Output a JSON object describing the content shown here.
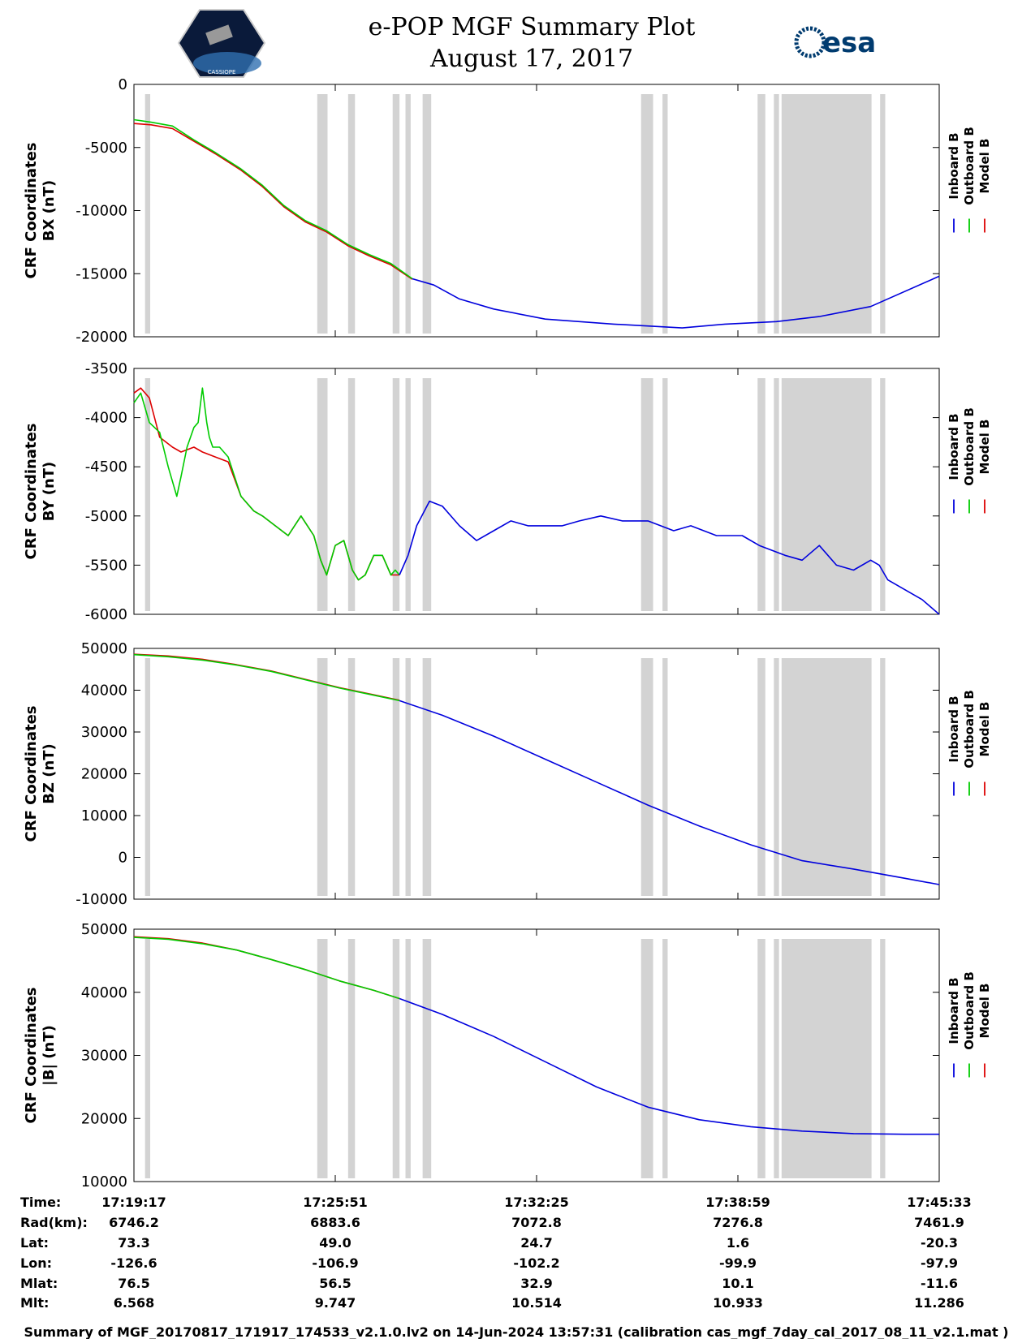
{
  "title": {
    "line1": "e-POP MGF Summary Plot",
    "line2": "August 17, 2017"
  },
  "logos": {
    "cassiope_text": "CASSIOPE",
    "esa_text": "esa"
  },
  "colors": {
    "inboard": "#0000dd",
    "outboard": "#00cc00",
    "model": "#dd0000",
    "gap": "#d3d3d3",
    "axis": "#000000"
  },
  "legend": [
    "Inboard B",
    "Outboard B",
    "Model B"
  ],
  "chart_data": [
    {
      "type": "line",
      "ylabel_line1": "CRF Coordinates",
      "ylabel_line2": "BX (nT)",
      "ylim": [
        -20000,
        0
      ],
      "yticks": [
        0,
        -5000,
        -10000,
        -15000,
        -20000
      ],
      "ytick_labels": [
        "0",
        "-5000",
        "-10000",
        "-15000",
        "-20000"
      ],
      "outboard": {
        "t": [
          0,
          20,
          45,
          70,
          95,
          125,
          150,
          175,
          200,
          225,
          250,
          275,
          300,
          325
        ],
        "v": [
          -2800,
          -3000,
          -3300,
          -4400,
          -5400,
          -6700,
          -8000,
          -9600,
          -10800,
          -11600,
          -12700,
          -13500,
          -14200,
          -15400
        ]
      },
      "model": {
        "t": [
          0,
          20,
          45,
          70,
          95,
          125,
          150,
          175,
          200,
          225,
          250,
          275,
          300,
          325
        ],
        "v": [
          -3100,
          -3200,
          -3500,
          -4500,
          -5500,
          -6800,
          -8100,
          -9700,
          -10900,
          -11700,
          -12800,
          -13600,
          -14300,
          -15450
        ]
      },
      "inboard": {
        "t": [
          325,
          350,
          380,
          420,
          480,
          560,
          640,
          690,
          750,
          800,
          860,
          940
        ],
        "v": [
          -15400,
          -15900,
          -17000,
          -17800,
          -18600,
          -19000,
          -19300,
          -19000,
          -18800,
          -18400,
          -17600,
          -15200
        ]
      }
    },
    {
      "type": "line",
      "ylabel_line1": "CRF Coordinates",
      "ylabel_line2": "BY (nT)",
      "ylim": [
        -6000,
        -3500
      ],
      "yticks": [
        -3500,
        -4000,
        -4500,
        -5000,
        -5500,
        -6000
      ],
      "ytick_labels": [
        "-3500",
        "-4000",
        "-4500",
        "-5000",
        "-5500",
        "-6000"
      ],
      "outboard": {
        "t": [
          0,
          8,
          18,
          30,
          40,
          50,
          55,
          62,
          70,
          75,
          80,
          85,
          88,
          92,
          100,
          110,
          125,
          140,
          150,
          165,
          180,
          195,
          210,
          218,
          225,
          235,
          245,
          255,
          262,
          270,
          280,
          290,
          300,
          305,
          310
        ],
        "v": [
          -3850,
          -3750,
          -4050,
          -4150,
          -4500,
          -4800,
          -4600,
          -4300,
          -4100,
          -4050,
          -3700,
          -4050,
          -4200,
          -4300,
          -4300,
          -4400,
          -4800,
          -4950,
          -5000,
          -5100,
          -5200,
          -5000,
          -5200,
          -5450,
          -5600,
          -5300,
          -5250,
          -5550,
          -5650,
          -5600,
          -5400,
          -5400,
          -5600,
          -5550,
          -5600
        ]
      },
      "model": {
        "t": [
          0,
          8,
          18,
          30,
          45,
          55,
          70,
          80,
          95,
          110,
          125,
          140,
          150,
          165,
          180,
          195,
          210,
          218,
          225,
          235,
          245,
          255,
          262,
          270,
          280,
          290,
          300,
          310
        ],
        "v": [
          -3750,
          -3700,
          -3800,
          -4200,
          -4300,
          -4350,
          -4300,
          -4350,
          -4400,
          -4450,
          -4800,
          -4950,
          -5000,
          -5100,
          -5200,
          -5000,
          -5200,
          -5450,
          -5600,
          -5300,
          -5250,
          -5550,
          -5650,
          -5600,
          -5400,
          -5400,
          -5600,
          -5600
        ]
      },
      "inboard": {
        "t": [
          310,
          320,
          330,
          345,
          360,
          380,
          400,
          420,
          440,
          460,
          480,
          500,
          520,
          545,
          570,
          600,
          630,
          650,
          680,
          710,
          730,
          760,
          780,
          800,
          820,
          840,
          860,
          870,
          880,
          900,
          920,
          940
        ],
        "v": [
          -5600,
          -5400,
          -5100,
          -4850,
          -4900,
          -5100,
          -5250,
          -5150,
          -5050,
          -5100,
          -5100,
          -5100,
          -5050,
          -5000,
          -5050,
          -5050,
          -5150,
          -5100,
          -5200,
          -5200,
          -5300,
          -5400,
          -5450,
          -5300,
          -5500,
          -5550,
          -5450,
          -5500,
          -5650,
          -5750,
          -5850,
          -6000
        ]
      }
    },
    {
      "type": "line",
      "ylabel_line1": "CRF Coordinates",
      "ylabel_line2": "BZ (nT)",
      "ylim": [
        -10000,
        50000
      ],
      "yticks": [
        50000,
        40000,
        30000,
        20000,
        10000,
        0,
        -10000
      ],
      "ytick_labels": [
        "50000",
        "40000",
        "30000",
        "20000",
        "10000",
        "0",
        "-10000"
      ],
      "outboard": {
        "t": [
          0,
          40,
          80,
          120,
          160,
          200,
          240,
          280,
          310
        ],
        "v": [
          48500,
          48000,
          47200,
          46000,
          44500,
          42500,
          40500,
          38800,
          37500
        ]
      },
      "model": {
        "t": [
          0,
          40,
          80,
          120,
          160,
          200,
          240,
          280,
          310
        ],
        "v": [
          48600,
          48200,
          47400,
          46100,
          44600,
          42600,
          40600,
          38900,
          37600
        ]
      },
      "inboard": {
        "t": [
          310,
          360,
          420,
          480,
          540,
          600,
          660,
          720,
          780,
          840,
          900,
          940
        ],
        "v": [
          37500,
          34000,
          29000,
          23500,
          18000,
          12500,
          7500,
          3000,
          -800,
          -2800,
          -5000,
          -6500
        ]
      }
    },
    {
      "type": "line",
      "ylabel_line1": "CRF Coordinates",
      "ylabel_line2": "|B| (nT)",
      "ylim": [
        10000,
        50000
      ],
      "yticks": [
        50000,
        40000,
        30000,
        20000,
        10000
      ],
      "ytick_labels": [
        "50000",
        "40000",
        "30000",
        "20000",
        "10000"
      ],
      "outboard": {
        "t": [
          0,
          40,
          80,
          120,
          160,
          200,
          240,
          280,
          310
        ],
        "v": [
          48700,
          48400,
          47700,
          46700,
          45200,
          43600,
          41800,
          40300,
          39000
        ]
      },
      "model": {
        "t": [
          0,
          40,
          80,
          120,
          160,
          200,
          240,
          280,
          310
        ],
        "v": [
          48800,
          48500,
          47800,
          46700,
          45200,
          43600,
          41800,
          40300,
          39000
        ]
      },
      "inboard": {
        "t": [
          310,
          360,
          420,
          480,
          540,
          600,
          660,
          720,
          780,
          840,
          900,
          940
        ],
        "v": [
          39000,
          36500,
          33000,
          29000,
          25000,
          21800,
          19800,
          18700,
          18000,
          17600,
          17500,
          17500
        ]
      }
    }
  ],
  "gaps": [
    [
      13,
      19
    ],
    [
      214,
      226
    ],
    [
      250,
      258
    ],
    [
      302,
      310
    ],
    [
      317,
      323
    ],
    [
      337,
      347
    ],
    [
      592,
      606
    ],
    [
      617,
      623
    ],
    [
      728,
      737
    ],
    [
      747,
      753
    ],
    [
      756,
      861
    ],
    [
      871,
      877
    ]
  ],
  "time_axis": {
    "tmax": 940,
    "tick_t": [
      0,
      235,
      470,
      705,
      940
    ]
  },
  "table": {
    "rows": [
      {
        "label": "Time:",
        "values": [
          "17:19:17",
          "17:25:51",
          "17:32:25",
          "17:38:59",
          "17:45:33"
        ]
      },
      {
        "label": "Rad(km):",
        "values": [
          "6746.2",
          "6883.6",
          "7072.8",
          "7276.8",
          "7461.9"
        ]
      },
      {
        "label": "Lat:",
        "values": [
          "73.3",
          "49.0",
          "24.7",
          "1.6",
          "-20.3"
        ]
      },
      {
        "label": "Lon:",
        "values": [
          "-126.6",
          "-106.9",
          "-102.2",
          "-99.9",
          "-97.9"
        ]
      },
      {
        "label": "Mlat:",
        "values": [
          "76.5",
          "56.5",
          "32.9",
          "10.1",
          "-11.6"
        ]
      },
      {
        "label": "Mlt:",
        "values": [
          "6.568",
          "9.747",
          "10.514",
          "10.933",
          "11.286"
        ]
      }
    ]
  },
  "footer": "Summary of MGF_20170817_171917_174533_v2.1.0.lv2 on 14-Jun-2024 13:57:31 (calibration cas_mgf_7day_cal_2017_08_11_v2.1.mat )"
}
